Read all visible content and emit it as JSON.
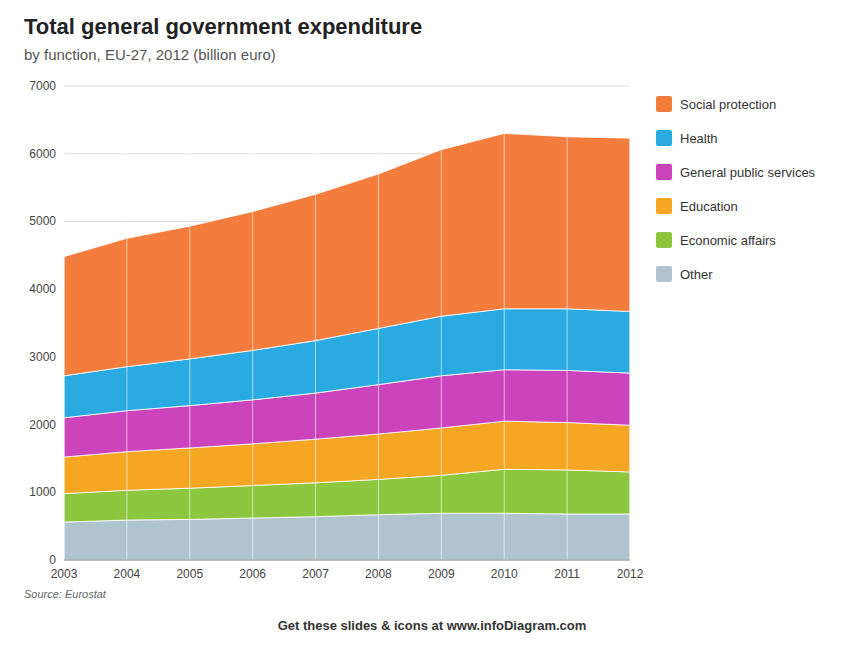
{
  "chart_data": {
    "type": "area",
    "stacked": true,
    "title": "Total general government expenditure",
    "subtitle": "by function, EU-27, 2012 (billion euro)",
    "annotations": [
      "Source: Eurostat",
      "Get these slides & icons at www.infoDiagram.com"
    ],
    "x": [
      2003,
      2004,
      2005,
      2006,
      2007,
      2008,
      2009,
      2010,
      2011,
      2012
    ],
    "xlim": [
      2003,
      2012
    ],
    "xticks": [
      2003,
      2004,
      2005,
      2006,
      2007,
      2008,
      2009,
      2010,
      2011,
      2012
    ],
    "ylim": [
      0,
      7000
    ],
    "yticks": [
      0,
      1000,
      2000,
      3000,
      4000,
      5000,
      6000,
      7000
    ],
    "grid": true,
    "legend": "right",
    "series": [
      {
        "name": "Other",
        "color": "#b0c4d0",
        "values": [
          560,
          590,
          600,
          620,
          640,
          670,
          690,
          690,
          680,
          680
        ]
      },
      {
        "name": "Economic affairs",
        "color": "#8dc63f",
        "values": [
          420,
          440,
          460,
          480,
          500,
          520,
          560,
          650,
          650,
          620
        ]
      },
      {
        "name": "Education",
        "color": "#f5a623",
        "values": [
          540,
          570,
          595,
          615,
          645,
          670,
          700,
          710,
          700,
          690
        ]
      },
      {
        "name": "General public services",
        "color": "#cc44bb",
        "values": [
          580,
          605,
          625,
          650,
          680,
          730,
          770,
          760,
          770,
          770
        ]
      },
      {
        "name": "Health",
        "color": "#29abe2",
        "values": [
          620,
          650,
          690,
          730,
          775,
          830,
          880,
          900,
          910,
          910
        ]
      },
      {
        "name": "Social protection",
        "color": "#f47c3c",
        "values": [
          1760,
          1895,
          1960,
          2050,
          2160,
          2280,
          2460,
          2590,
          2540,
          2560
        ]
      }
    ]
  }
}
